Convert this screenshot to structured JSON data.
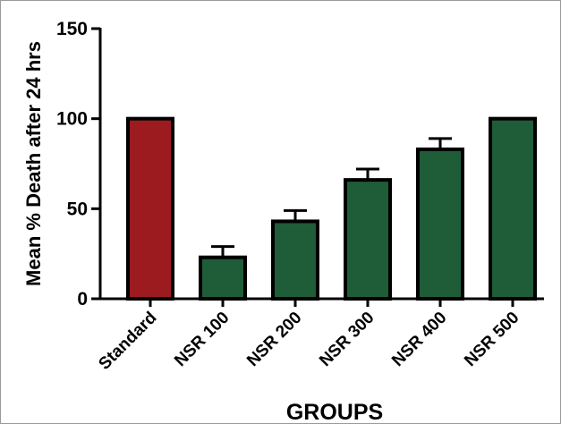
{
  "chart_data": {
    "type": "bar",
    "title": "",
    "xlabel": "GROUPS",
    "ylabel": "Mean % Death after 24 hrs",
    "ylim": [
      0,
      150
    ],
    "yticks": [
      0,
      50,
      100,
      150
    ],
    "grid": false,
    "legend": "none",
    "categories": [
      "Standard",
      "NSR 100",
      "NSR 200",
      "NSR 300",
      "NSR 400",
      "NSR 500"
    ],
    "values": [
      100,
      23,
      43,
      66,
      83,
      100
    ],
    "error_upper": [
      0,
      6,
      6,
      6,
      6,
      0
    ],
    "colors": {
      "standard": "#9b1b1f",
      "test": "#1f5c38",
      "outline": "#000000"
    },
    "bar_colors": [
      "#9b1b1f",
      "#1f5c38",
      "#1f5c38",
      "#1f5c38",
      "#1f5c38",
      "#1f5c38"
    ]
  }
}
